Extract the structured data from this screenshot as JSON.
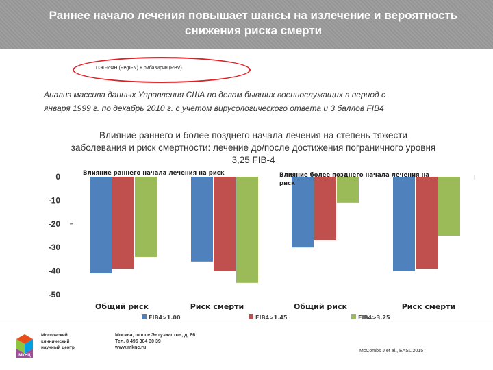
{
  "header": {
    "title_line1": "Раннее начало лечения повышает шансы на излечение и вероятность",
    "title_line2": "снижения риска смерти"
  },
  "treatment_label": "ПЭГ-ИФН (PegIFN) + рибавирин (RBV)",
  "analysis": {
    "line1": "Анализ массива данных Управления США по делам бывших военнослужащих в период с",
    "line2": "января 1999 г. по декабрь 2010 г. с учетом вирусологического ответа и 3 баллов FIB4"
  },
  "chart_title": {
    "line1": "Влияние раннего и более позднего начала лечения на степень тяжести",
    "line2": "заболевания и риск смертности: лечение до/после достижения пограничного уровня",
    "line3": "3,25 FIB-4"
  },
  "chart_data": {
    "type": "bar",
    "ylim": [
      -50,
      0
    ],
    "yticks": [
      "0",
      "-10",
      "-20",
      "-30",
      "-40",
      "-50"
    ],
    "ytick_values": [
      0,
      -10,
      -20,
      -30,
      -40,
      -50
    ],
    "grid": false,
    "legend_position": "bottom",
    "panel_labels": [
      "Влияние раннего начала лечения на риск",
      "Влияние более позднего начала лечения на риск"
    ],
    "categories": [
      "Общий риск",
      "Риск смерти",
      "Общий риск",
      "Риск смерти"
    ],
    "series": [
      {
        "name": "FIB4>1.00",
        "color": "#4f81bd",
        "values": [
          -41,
          -36,
          -30,
          -40
        ]
      },
      {
        "name": "FIB4>1.45",
        "color": "#c0504d",
        "values": [
          -39,
          -40,
          -27,
          -39
        ]
      },
      {
        "name": "FIB4>3.25",
        "color": "#9bbb59",
        "values": [
          -34,
          -45,
          -11,
          -25
        ]
      }
    ]
  },
  "footer": {
    "logo_abbr": "МКНЦ",
    "org_line1": "Московский",
    "org_line2": "клинический",
    "org_line3": "научный центр",
    "address": "Москва, шоссе Энтузиастов, д. 86",
    "phone": "Тел. 8 495 304 30 39",
    "website": "www.mknc.ru",
    "citation": "McCombs J et al., EASL 2015"
  }
}
